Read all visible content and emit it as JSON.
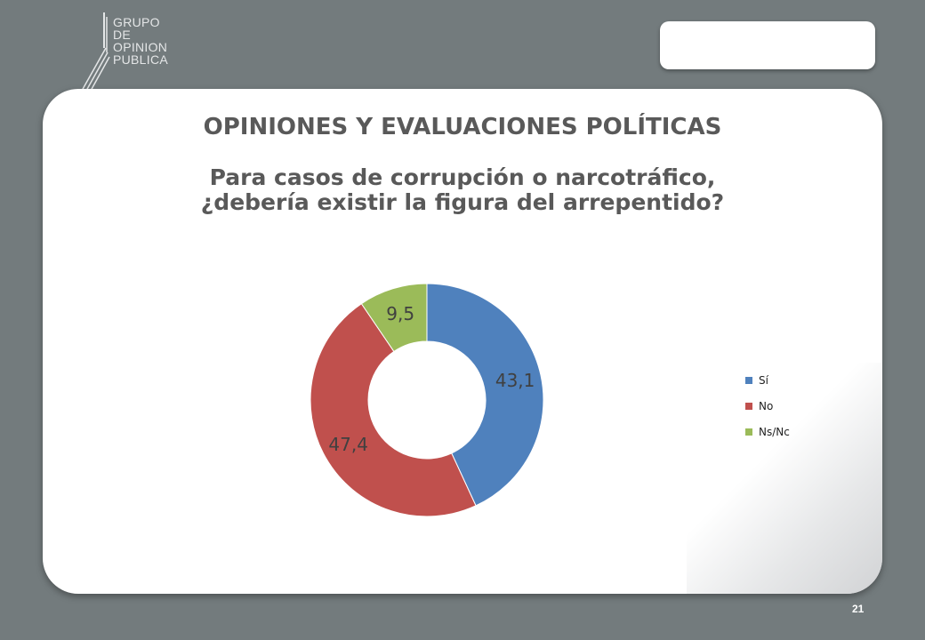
{
  "logo": {
    "lines": [
      "GRUPO",
      "DE",
      "OPINION",
      "PUBLICA"
    ]
  },
  "title": "OPINIONES Y EVALUACIONES POLÍTICAS",
  "subtitle": [
    "Para casos de corrupción o narcotráfico,",
    "¿debería existir la figura del arrepentido?"
  ],
  "page_number": "21",
  "colors": {
    "si": "#4f81bd",
    "no": "#c0504d",
    "nsnc": "#9bbb59",
    "background": "#737b7d"
  },
  "chart_data": {
    "type": "pie",
    "style": "donut",
    "categories": [
      "Sí",
      "No",
      "Ns/Nc"
    ],
    "values": [
      43.1,
      47.4,
      9.5
    ],
    "data_labels": [
      "43,1",
      "47,4",
      "9,5"
    ],
    "colors": [
      "#4f81bd",
      "#c0504d",
      "#9bbb59"
    ],
    "legend_position": "right"
  }
}
